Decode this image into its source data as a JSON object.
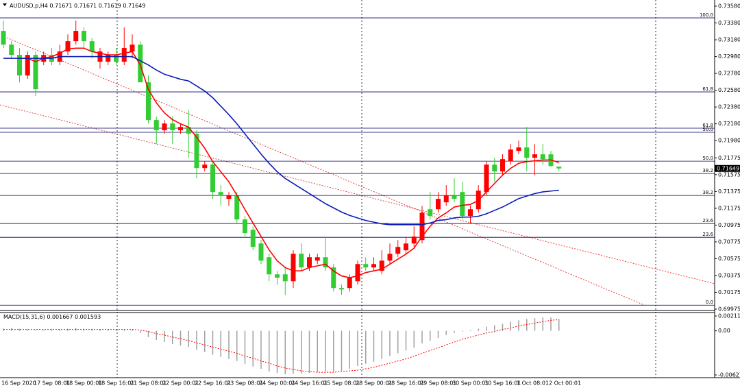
{
  "chart_data": [
    {
      "type": "candlestick",
      "title": "AUDUSD,p,H4",
      "categories": [
        "16 Sep 2020",
        null,
        null,
        null,
        "17 Sep 08:01",
        null,
        null,
        null,
        "18 Sep 00:01",
        null,
        null,
        null,
        "18 Sep 16:01",
        null,
        null,
        null,
        "21 Sep 08:01",
        null,
        null,
        null,
        "22 Sep 00:01",
        null,
        null,
        null,
        "22 Sep 16:01",
        null,
        null,
        null,
        "23 Sep 08:01",
        null,
        null,
        null,
        "24 Sep 00:01",
        null,
        null,
        null,
        "24 Sep 16:01",
        null,
        null,
        null,
        "25 Sep 08:01",
        null,
        null,
        null,
        "28 Sep 00:01",
        null,
        null,
        null,
        "28 Sep 16:01",
        null,
        null,
        null,
        "29 Sep 08:01",
        null,
        null,
        null,
        "30 Sep 00:01",
        null,
        null,
        null,
        "30 Sep 16:01",
        null,
        null,
        null,
        "1 Oct 08:01",
        null,
        null,
        null,
        "2 Oct 00:01",
        null
      ],
      "open": [
        0.73286,
        0.73123,
        0.73,
        0.72755,
        0.73,
        0.72919,
        0.73,
        0.72919,
        0.73041,
        0.73163,
        0.73286,
        0.73163,
        0.72919,
        0.72919,
        0.73,
        0.72919,
        0.73041,
        0.73123,
        0.72674,
        0.72225,
        0.72103,
        0.72184,
        0.72103,
        0.72143,
        0.72062,
        0.71654,
        0.71695,
        0.71368,
        0.71287,
        0.71327,
        0.71042,
        0.70919,
        0.70756,
        0.70593,
        0.70389,
        0.70389,
        0.70307,
        0.70634,
        0.70471,
        0.70552,
        0.70593,
        0.70471,
        0.70226,
        0.70226,
        0.70307,
        0.70511,
        0.70471,
        0.7043,
        0.70552,
        0.70634,
        0.70675,
        0.70756,
        0.70797,
        0.71164,
        0.71164,
        0.71246,
        0.71327,
        0.71368,
        0.71083,
        0.71164,
        0.71368,
        0.71695,
        0.71613,
        0.71735,
        0.71858,
        0.71899,
        0.71776,
        0.71817,
        0.71817,
        0.71671
      ],
      "high": [
        0.73408,
        0.73163,
        0.73082,
        0.73041,
        0.73041,
        0.73041,
        0.73082,
        0.73123,
        0.73245,
        0.73408,
        0.73327,
        0.73204,
        0.73082,
        0.73041,
        0.73082,
        0.73327,
        0.73245,
        0.73163,
        0.72755,
        0.72266,
        0.72225,
        0.72266,
        0.72184,
        0.72347,
        0.72103,
        0.71735,
        0.71735,
        0.7145,
        0.71368,
        0.71368,
        0.71083,
        0.7096,
        0.70797,
        0.70634,
        0.7043,
        0.70471,
        0.70675,
        0.70756,
        0.70634,
        0.70634,
        0.70838,
        0.70511,
        0.70267,
        0.70389,
        0.70552,
        0.70593,
        0.70593,
        0.70675,
        0.70756,
        0.70797,
        0.70838,
        0.7096,
        0.71205,
        0.71368,
        0.71368,
        0.7145,
        0.71531,
        0.71491,
        0.71205,
        0.7145,
        0.71735,
        0.71776,
        0.71817,
        0.71939,
        0.7198,
        0.72143,
        0.71939,
        0.71939,
        0.71858,
        0.71671
      ],
      "low": [
        0.73082,
        0.72959,
        0.72674,
        0.72715,
        0.72511,
        0.72878,
        0.72878,
        0.72878,
        0.73,
        0.73123,
        0.73082,
        0.72959,
        0.72837,
        0.72878,
        0.72878,
        0.72878,
        0.72959,
        0.72674,
        0.72184,
        0.71939,
        0.72062,
        0.71939,
        0.72062,
        0.71776,
        0.71531,
        0.71613,
        0.71287,
        0.71205,
        0.71205,
        0.71001,
        0.70838,
        0.70675,
        0.70511,
        0.70307,
        0.70267,
        0.70144,
        0.70226,
        0.7043,
        0.7043,
        0.70511,
        0.7043,
        0.70185,
        0.70144,
        0.70185,
        0.70267,
        0.7043,
        0.7043,
        0.70389,
        0.70511,
        0.70593,
        0.70634,
        0.70715,
        0.70756,
        0.71042,
        0.71123,
        0.71205,
        0.71246,
        0.71042,
        0.71001,
        0.71123,
        0.71327,
        0.71491,
        0.71572,
        0.71695,
        0.71817,
        0.71613,
        0.71572,
        0.71695,
        0.7167,
        0.71619
      ],
      "close": [
        0.73123,
        0.73,
        0.72755,
        0.73,
        0.72592,
        0.73,
        0.72919,
        0.73041,
        0.73163,
        0.73286,
        0.73163,
        0.73041,
        0.73041,
        0.73,
        0.72919,
        0.73082,
        0.73123,
        0.72674,
        0.72225,
        0.72103,
        0.72184,
        0.72103,
        0.72143,
        0.72062,
        0.71654,
        0.71695,
        0.71368,
        0.71327,
        0.71327,
        0.71042,
        0.70879,
        0.70715,
        0.70552,
        0.70389,
        0.70348,
        0.70307,
        0.70634,
        0.70471,
        0.70593,
        0.70593,
        0.70471,
        0.70226,
        0.70209,
        0.70348,
        0.70511,
        0.70471,
        0.70511,
        0.70552,
        0.70634,
        0.70715,
        0.70756,
        0.70838,
        0.71123,
        0.71083,
        0.71287,
        0.71327,
        0.71287,
        0.71083,
        0.71164,
        0.71385,
        0.71695,
        0.71613,
        0.7176,
        0.71874,
        0.71899,
        0.71776,
        0.71817,
        0.7176,
        0.71678,
        0.71649
      ],
      "up_color": "#ff0000",
      "down_color": "#32cd32",
      "lines": [
        {
          "color": "#ff0000",
          "values": [
            null,
            null,
            0.7296,
            0.7296,
            0.7292,
            0.7296,
            0.7298,
            0.7302,
            0.7307,
            0.7308,
            0.7308,
            0.7304,
            0.7302,
            0.73,
            0.73,
            0.7302,
            0.7304,
            0.7288,
            0.7259,
            0.7243,
            0.7231,
            0.7223,
            0.7218,
            0.7214,
            0.7202,
            0.7189,
            0.7173,
            0.7161,
            0.7149,
            0.7133,
            0.7116,
            0.71,
            0.7084,
            0.7068,
            0.7055,
            0.7047,
            0.7043,
            0.7043,
            0.7047,
            0.7049,
            0.7051,
            0.7043,
            0.7037,
            0.7035,
            0.7037,
            0.7041,
            0.7043,
            0.7045,
            0.7051,
            0.7057,
            0.7063,
            0.707,
            0.7084,
            0.7096,
            0.7106,
            0.7112,
            0.7119,
            0.7121,
            0.7122,
            0.7127,
            0.7137,
            0.7147,
            0.7157,
            0.7165,
            0.7171,
            0.7173,
            0.7174,
            0.7175,
            0.7175,
            0.7172
          ]
        },
        {
          "color": "#0a1ab8",
          "values": [
            0.7296,
            0.7296,
            0.7296,
            0.7296,
            0.7296,
            0.7296,
            0.7296,
            0.7298,
            0.7298,
            0.7298,
            0.7298,
            0.7298,
            0.7298,
            0.7298,
            0.7298,
            0.7298,
            0.7298,
            0.7293,
            0.7288,
            0.7282,
            0.7277,
            0.7274,
            0.7271,
            0.7269,
            0.7263,
            0.7257,
            0.7249,
            0.7239,
            0.7229,
            0.7218,
            0.7206,
            0.7194,
            0.7182,
            0.7171,
            0.7161,
            0.7153,
            0.7147,
            0.7141,
            0.7135,
            0.7129,
            0.7123,
            0.7118,
            0.7113,
            0.7109,
            0.7106,
            0.7103,
            0.7101,
            0.7099,
            0.7098,
            0.7098,
            0.7098,
            0.7098,
            0.7098,
            0.71,
            0.7103,
            0.7104,
            0.7106,
            0.7107,
            0.7107,
            0.7108,
            0.7111,
            0.7115,
            0.7119,
            0.7124,
            0.7129,
            0.7132,
            0.7135,
            0.7137,
            0.7138,
            0.7139
          ]
        }
      ],
      "levels": [
        {
          "value": 0.73441,
          "label": "100.0"
        },
        {
          "value": 0.7256,
          "label": "61.8"
        },
        {
          "value": 0.72128,
          "label": "61.8"
        },
        {
          "value": 0.72079,
          "label": "50.0"
        },
        {
          "value": 0.71736,
          "label": "50.0"
        },
        {
          "value": 0.71589,
          "label": "38.2"
        },
        {
          "value": 0.71328,
          "label": "38.2"
        },
        {
          "value": 0.70994,
          "label": "23.6"
        },
        {
          "value": 0.7083,
          "label": "23.6"
        },
        {
          "value": 0.70022,
          "label": "0.0"
        }
      ],
      "ylim": [
        0.69975,
        0.7358
      ],
      "yticks": [
        {
          "value": 0.7358,
          "label": "0.73580"
        },
        {
          "value": 0.7338,
          "label": "0.73380"
        },
        {
          "value": 0.7318,
          "label": "0.73180"
        },
        {
          "value": 0.7298,
          "label": "0.72980"
        },
        {
          "value": 0.7278,
          "label": "0.72780"
        },
        {
          "value": 0.7258,
          "label": "0.72580"
        },
        {
          "value": 0.7238,
          "label": "0.72380"
        },
        {
          "value": 0.7218,
          "label": "0.72180"
        },
        {
          "value": 0.7198,
          "label": "0.71980"
        },
        0.71775,
        0.71575,
        0.71375,
        0.71175,
        0.70975,
        0.70775,
        0.70575,
        0.70375,
        0.70175,
        0.69975
      ],
      "grid": false
    },
    {
      "type": "macd",
      "title": "MACD(15,31,6)",
      "histogram": {
        "color": "#a0a0a0",
        "values": [
          0.0003,
          0.0004,
          0.0003,
          0.0002,
          0.0001,
          0.0001,
          0.0002,
          0.0002,
          0.0003,
          0.0004,
          0.0003,
          0.0003,
          0.0002,
          0.0002,
          0.0002,
          0.0002,
          0.0002,
          -0.0003,
          -0.0009,
          -0.0013,
          -0.0016,
          -0.0019,
          -0.0021,
          -0.0023,
          -0.0027,
          -0.003,
          -0.0034,
          -0.0037,
          -0.004,
          -0.0043,
          -0.0047,
          -0.0051,
          -0.0054,
          -0.0058,
          -0.006,
          -0.0062,
          -0.0061,
          -0.0061,
          -0.006,
          -0.0059,
          -0.0058,
          -0.0058,
          -0.0057,
          -0.0054,
          -0.005,
          -0.0047,
          -0.0044,
          -0.004,
          -0.0036,
          -0.0032,
          -0.0028,
          -0.0024,
          -0.0018,
          -0.0014,
          -0.001,
          -0.0006,
          -0.0003,
          -0.0001,
          0.0001,
          0.0003,
          0.0006,
          0.0008,
          0.001,
          0.0013,
          0.0015,
          0.0017,
          0.0018,
          0.0019,
          0.0019,
          0.001667
        ]
      },
      "signal": {
        "color": "#ff0000",
        "values": [
          0.0002,
          0.0002,
          0.0002,
          0.0002,
          0.0002,
          0.0002,
          0.0002,
          0.0002,
          0.0002,
          0.0002,
          0.0002,
          0.0002,
          0.0002,
          0.0002,
          0.0002,
          0.0002,
          0.0002,
          0.0001,
          -0.0001,
          -0.0004,
          -0.0006,
          -0.0009,
          -0.0011,
          -0.0014,
          -0.0017,
          -0.002,
          -0.0023,
          -0.0026,
          -0.0029,
          -0.0032,
          -0.0036,
          -0.0039,
          -0.0043,
          -0.0046,
          -0.005,
          -0.0053,
          -0.0055,
          -0.0057,
          -0.0058,
          -0.0059,
          -0.0059,
          -0.0059,
          -0.0058,
          -0.0057,
          -0.0056,
          -0.0054,
          -0.0052,
          -0.0049,
          -0.0046,
          -0.0043,
          -0.004,
          -0.0036,
          -0.0032,
          -0.0028,
          -0.0024,
          -0.002,
          -0.0016,
          -0.0012,
          -0.0009,
          -0.0006,
          -0.0003,
          -0.0001,
          0.0002,
          0.0004,
          0.0007,
          0.0009,
          0.0011,
          0.0013,
          0.0015,
          0.001593
        ]
      },
      "ylim": [
        -0.006279,
        0.002116
      ],
      "yticks": [
        0.002116,
        {
          "value": 0,
          "label": "0.00"
        },
        -0.006279
      ]
    }
  ]
}
